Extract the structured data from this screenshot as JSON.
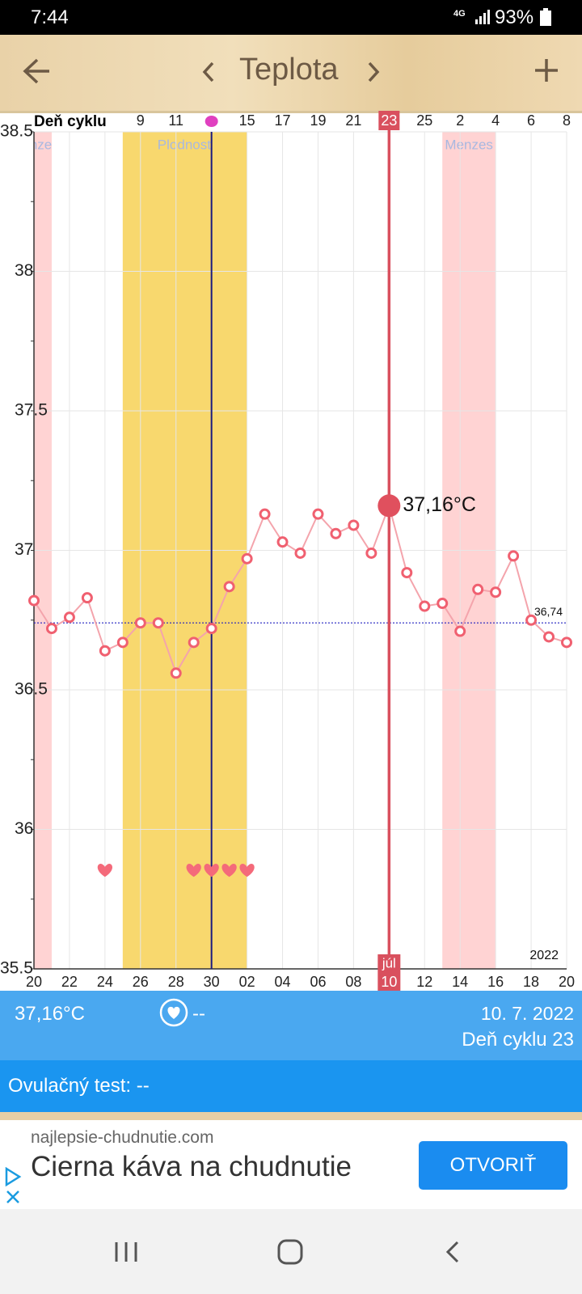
{
  "status_bar": {
    "time": "7:44",
    "network": "4G",
    "battery": "93%"
  },
  "header": {
    "title": "Teplota"
  },
  "chart_data": {
    "type": "line",
    "axis_title": "Deň cyklu",
    "categories": [
      "20",
      null,
      "22",
      null,
      "24",
      null,
      "26",
      null,
      "28",
      null,
      "30",
      null,
      "02",
      null,
      "04",
      null,
      "06",
      null,
      "08",
      null,
      "10",
      null,
      "12",
      null,
      "14",
      null,
      "16",
      null,
      "18",
      null,
      "20"
    ],
    "values": [
      36.82,
      36.72,
      36.76,
      36.83,
      36.64,
      36.67,
      36.74,
      36.74,
      36.56,
      36.67,
      36.72,
      36.87,
      36.97,
      37.13,
      37.03,
      36.99,
      37.13,
      37.06,
      37.09,
      36.99,
      37.16,
      36.92,
      36.8,
      36.81,
      36.71,
      36.86,
      36.85,
      36.98,
      36.75,
      36.69,
      36.67
    ],
    "value_labels": [
      null,
      null,
      null,
      null,
      null,
      null,
      null,
      null,
      null,
      null,
      null,
      null,
      null,
      null,
      null,
      null,
      null,
      null,
      null,
      null,
      "37,16°C",
      null,
      null,
      null,
      null,
      null,
      null,
      null,
      null,
      null,
      null
    ],
    "color": "#f06070",
    "cycle_days": [
      "9",
      "11",
      null,
      "15",
      "17",
      "19",
      "21",
      "23",
      "25",
      "2",
      "4",
      "6",
      "8"
    ],
    "month_label": "júl",
    "year": "2022",
    "band_labels": {
      "fertile": "Plodnosť",
      "menses": "Menzes"
    },
    "reference_line": {
      "value": 36.74,
      "label": "36,74"
    },
    "ylim": [
      35.5,
      38.5
    ],
    "yticks": [
      35.5,
      36,
      36.5,
      37,
      37.5,
      38,
      38.5
    ],
    "grid": true
  },
  "info": {
    "temperature": "37,16°C",
    "intercourse": "--",
    "date": "10. 7. 2022",
    "cycle_day": "Deň cyklu 23",
    "ovulation_test": "Ovulačný test: --"
  },
  "ad": {
    "domain": "najlepsie-chudnutie.com",
    "headline": "Cierna káva na chudnutie",
    "button": "OTVORIŤ"
  }
}
